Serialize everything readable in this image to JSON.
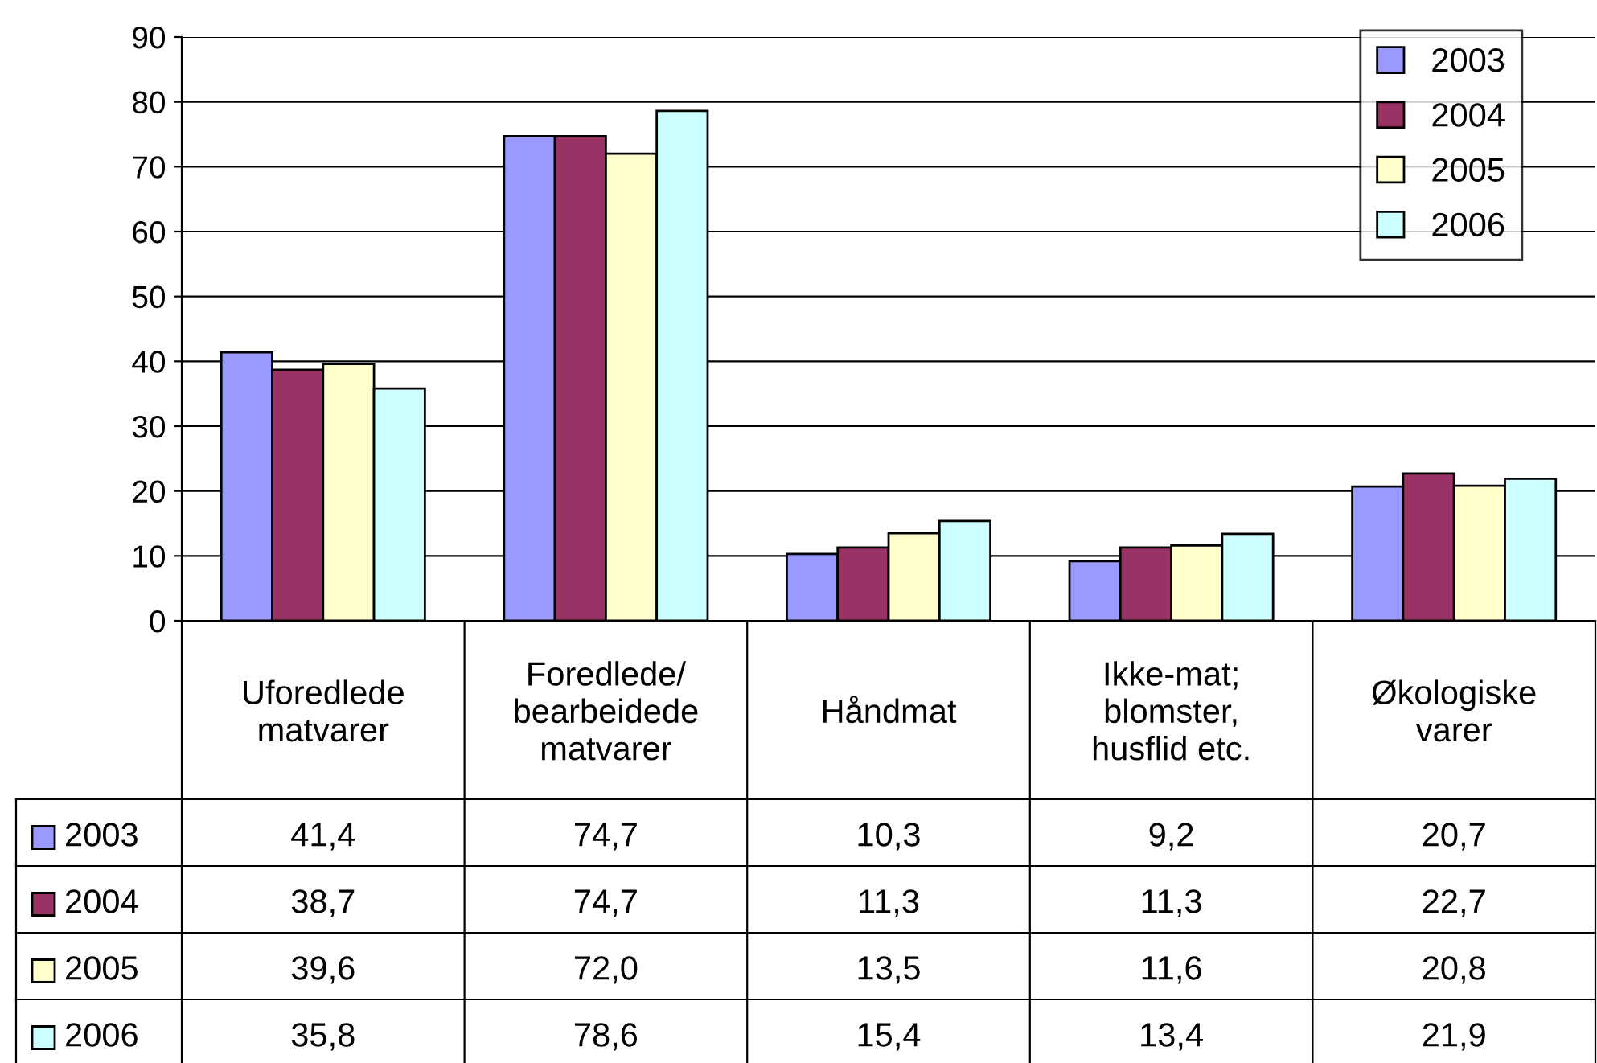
{
  "chart_data": {
    "type": "bar",
    "categories": [
      "Uforedlede\nmatvarer",
      "Foredlede/\nbearbeidede\nmatvarer",
      "Håndmat",
      "Ikke-mat;\nblomster,\nhusflid etc.",
      "Økologiske\nvarer"
    ],
    "series": [
      {
        "name": "2003",
        "color": "#9999ff",
        "values": [
          41.4,
          74.7,
          10.3,
          9.2,
          20.7
        ],
        "value_labels": [
          "41,4",
          "74,7",
          "10,3",
          "9,2",
          "20,7"
        ]
      },
      {
        "name": "2004",
        "color": "#993366",
        "values": [
          38.7,
          74.7,
          11.3,
          11.3,
          22.7
        ],
        "value_labels": [
          "38,7",
          "74,7",
          "11,3",
          "11,3",
          "22,7"
        ]
      },
      {
        "name": "2005",
        "color": "#ffffcc",
        "values": [
          39.6,
          72.0,
          13.5,
          11.6,
          20.8
        ],
        "value_labels": [
          "39,6",
          "72,0",
          "13,5",
          "11,6",
          "20,8"
        ]
      },
      {
        "name": "2006",
        "color": "#ccffff",
        "values": [
          35.8,
          78.6,
          15.4,
          13.4,
          21.9
        ],
        "value_labels": [
          "35,8",
          "78,6",
          "15,4",
          "13,4",
          "21,9"
        ]
      }
    ],
    "ylim": [
      0,
      90
    ],
    "yticks": [
      0,
      10,
      20,
      30,
      40,
      50,
      60,
      70,
      80,
      90
    ],
    "grid": "y",
    "legend": "top right"
  }
}
